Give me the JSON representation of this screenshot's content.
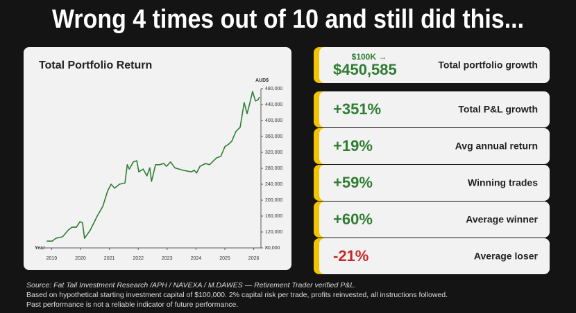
{
  "headline": "Wrong 4 times out of 10 and still did this...",
  "chart_data": {
    "type": "line",
    "title": "Total Portfolio Return",
    "y_label": "AUD$",
    "x_label": "Year",
    "color": "#2e7d32",
    "x": [
      2018.83,
      2019.02,
      2019.14,
      2019.38,
      2019.58,
      2019.7,
      2019.86,
      2019.98,
      2020.07,
      2020.14,
      2020.34,
      2020.58,
      2020.77,
      2020.94,
      2021.06,
      2021.18,
      2021.35,
      2021.54,
      2021.62,
      2021.69,
      2021.83,
      2021.95,
      2022.02,
      2022.17,
      2022.3,
      2022.4,
      2022.46,
      2022.6,
      2022.74,
      2022.88,
      2022.98,
      2023.12,
      2023.27,
      2023.41,
      2023.55,
      2023.84,
      2023.94,
      2024.02,
      2024.14,
      2024.33,
      2024.47,
      2024.71,
      2024.86,
      2025.0,
      2025.14,
      2025.24,
      2025.38,
      2025.53,
      2025.67,
      2025.77,
      2025.86,
      2025.96,
      2026.06,
      2026.15,
      2026.2
    ],
    "values": [
      97000,
      97000,
      104000,
      108000,
      125000,
      132000,
      132000,
      146000,
      143000,
      104000,
      125000,
      160000,
      184000,
      223000,
      240000,
      230000,
      240000,
      243000,
      289000,
      278000,
      296000,
      299000,
      271000,
      278000,
      261000,
      281000,
      247000,
      289000,
      289000,
      292000,
      285000,
      296000,
      281000,
      278000,
      275000,
      271000,
      275000,
      268000,
      285000,
      292000,
      289000,
      306000,
      310000,
      334000,
      341000,
      348000,
      372000,
      383000,
      445000,
      417000,
      442000,
      473000,
      449000,
      452000,
      459000
    ],
    "xlim": [
      2018.75,
      2026.25
    ],
    "xticks": [
      2019,
      2020,
      2021,
      2022,
      2023,
      2024,
      2025,
      2026
    ],
    "ylim": [
      80000,
      480000
    ],
    "yticks": [
      {
        "value": 80000,
        "label": "80,000"
      },
      {
        "value": 120000,
        "label": "120,000"
      },
      {
        "value": 160000,
        "label": "160,000"
      },
      {
        "value": 200000,
        "label": "200,000"
      },
      {
        "value": 240000,
        "label": "240,000"
      },
      {
        "value": 280000,
        "label": "280,000"
      },
      {
        "value": 320000,
        "label": "320,000"
      },
      {
        "value": 360000,
        "label": "360,000"
      },
      {
        "value": 400000,
        "label": "400,000"
      },
      {
        "value": 440000,
        "label": "440,000"
      },
      {
        "value": 480000,
        "label": "480,000"
      }
    ]
  },
  "stats": [
    {
      "prefix": "$100K →",
      "value": "$450,585",
      "label": "Total portfolio growth",
      "color": "#2e7d32"
    },
    {
      "value": "+351%",
      "label": "Total P&L growth",
      "color": "#2e7d32"
    },
    {
      "value": "+19%",
      "label": "Avg annual return",
      "color": "#2e7d32"
    },
    {
      "value": "+59%",
      "label": "Winning trades",
      "color": "#2e7d32"
    },
    {
      "value": "+60%",
      "label": "Average winner",
      "color": "#2e7d32"
    },
    {
      "value": "-21%",
      "label": "Average loser",
      "color": "#c62828"
    }
  ],
  "notes": {
    "source": "Source: Fat Tail Investment Research /APH / NAVEXA / M.DAWES — Retirement Trader verified P&L.",
    "lines": [
      "Based on hypothetical starting investment capital of $100,000. 2% capital risk per trade, profits reinvested, all instructions followed.",
      "Past performance is not a reliable indicator of future performance."
    ]
  }
}
